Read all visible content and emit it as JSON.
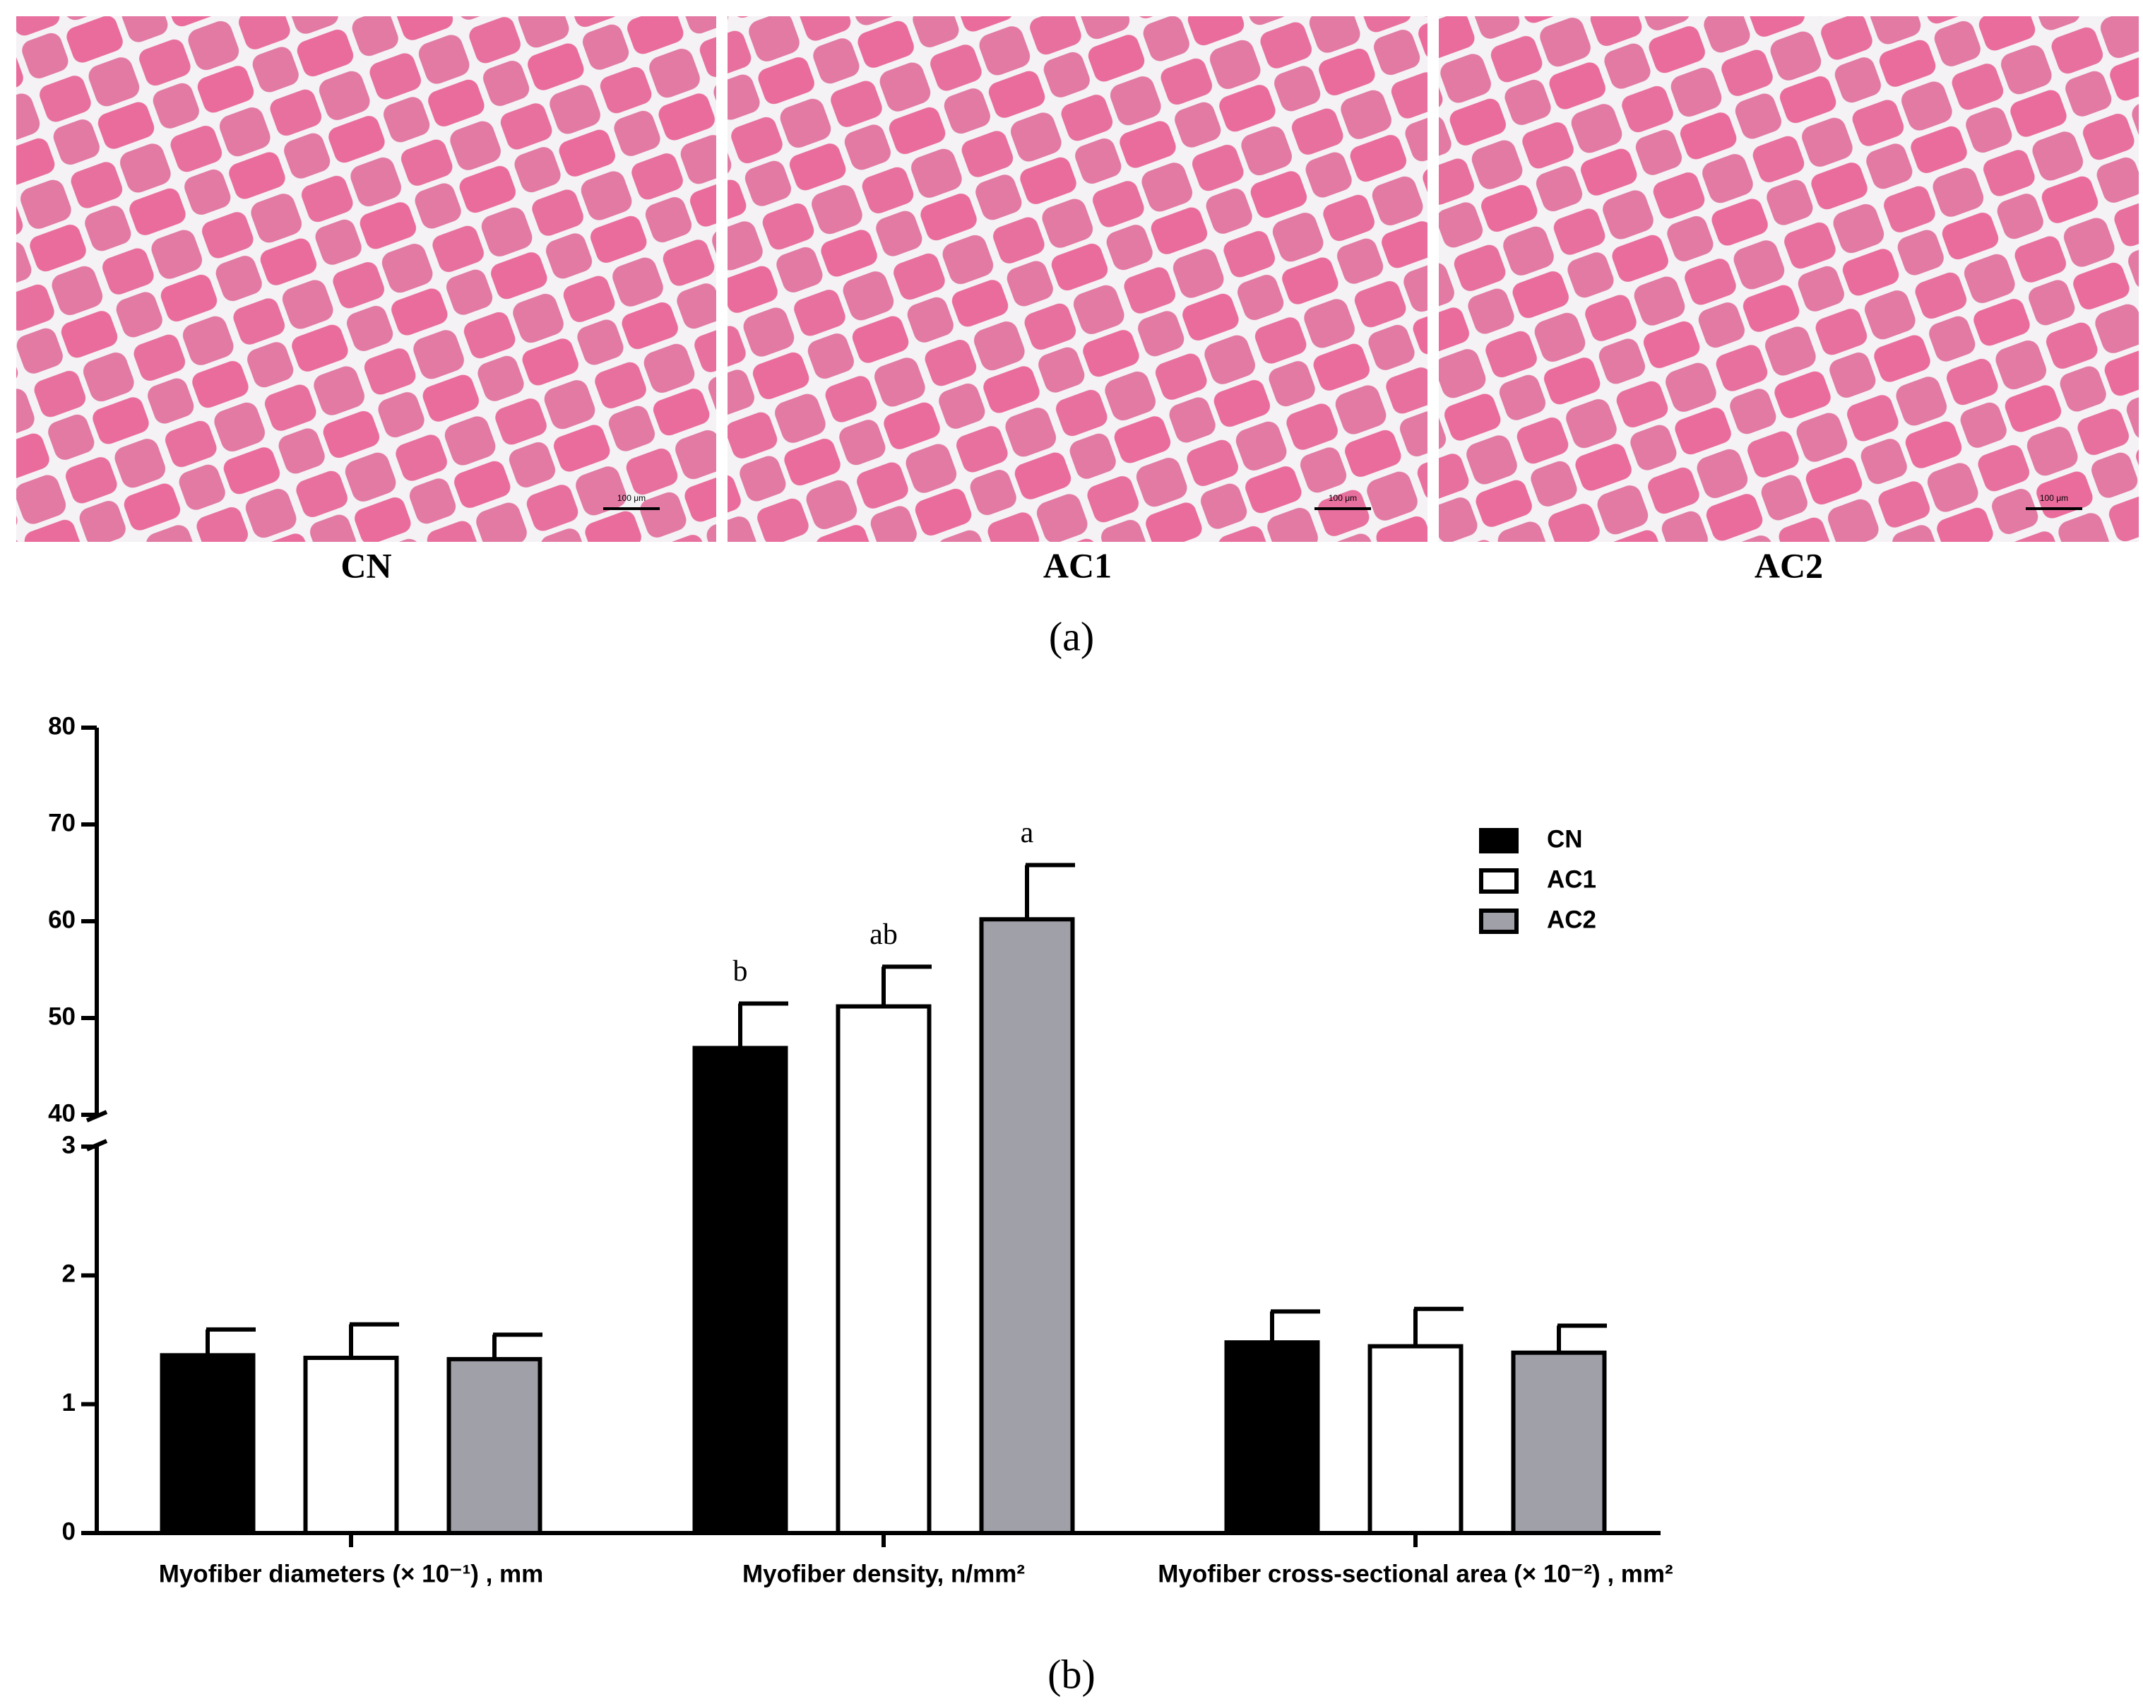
{
  "panel_a": {
    "label": "(a)",
    "images": [
      {
        "caption": "CN",
        "scale_bar": "100 μm"
      },
      {
        "caption": "AC1",
        "scale_bar": "100 μm"
      },
      {
        "caption": "AC2",
        "scale_bar": "100 μm"
      }
    ]
  },
  "panel_b": {
    "label": "(b)"
  },
  "chart_data": {
    "type": "bar",
    "categories": [
      "Myofiber diameters (× 10⁻¹) , mm",
      "Myofiber density, n/mm²",
      "Myofiber cross-sectional area (× 10⁻²) , mm²"
    ],
    "series": [
      {
        "name": "CN",
        "color": "#000000",
        "values": [
          1.38,
          46.9,
          1.48
        ],
        "errors": [
          0.2,
          4.6,
          0.24
        ],
        "labels": [
          null,
          "b",
          null
        ]
      },
      {
        "name": "AC1",
        "color": "#ffffff",
        "values": [
          1.36,
          51.2,
          1.45
        ],
        "errors": [
          0.26,
          4.1,
          0.29
        ],
        "labels": [
          null,
          "ab",
          null
        ]
      },
      {
        "name": "AC2",
        "color": "#a0a0a8",
        "values": [
          1.35,
          60.2,
          1.4
        ],
        "errors": [
          0.19,
          5.6,
          0.21
        ],
        "labels": [
          null,
          "a",
          null
        ]
      }
    ],
    "ylim": [
      0,
      80
    ],
    "yticks": [
      0,
      1,
      2,
      3,
      40,
      50,
      60,
      70,
      80
    ],
    "axis_break": [
      3,
      40
    ],
    "legend": "upper right",
    "grid": false
  }
}
